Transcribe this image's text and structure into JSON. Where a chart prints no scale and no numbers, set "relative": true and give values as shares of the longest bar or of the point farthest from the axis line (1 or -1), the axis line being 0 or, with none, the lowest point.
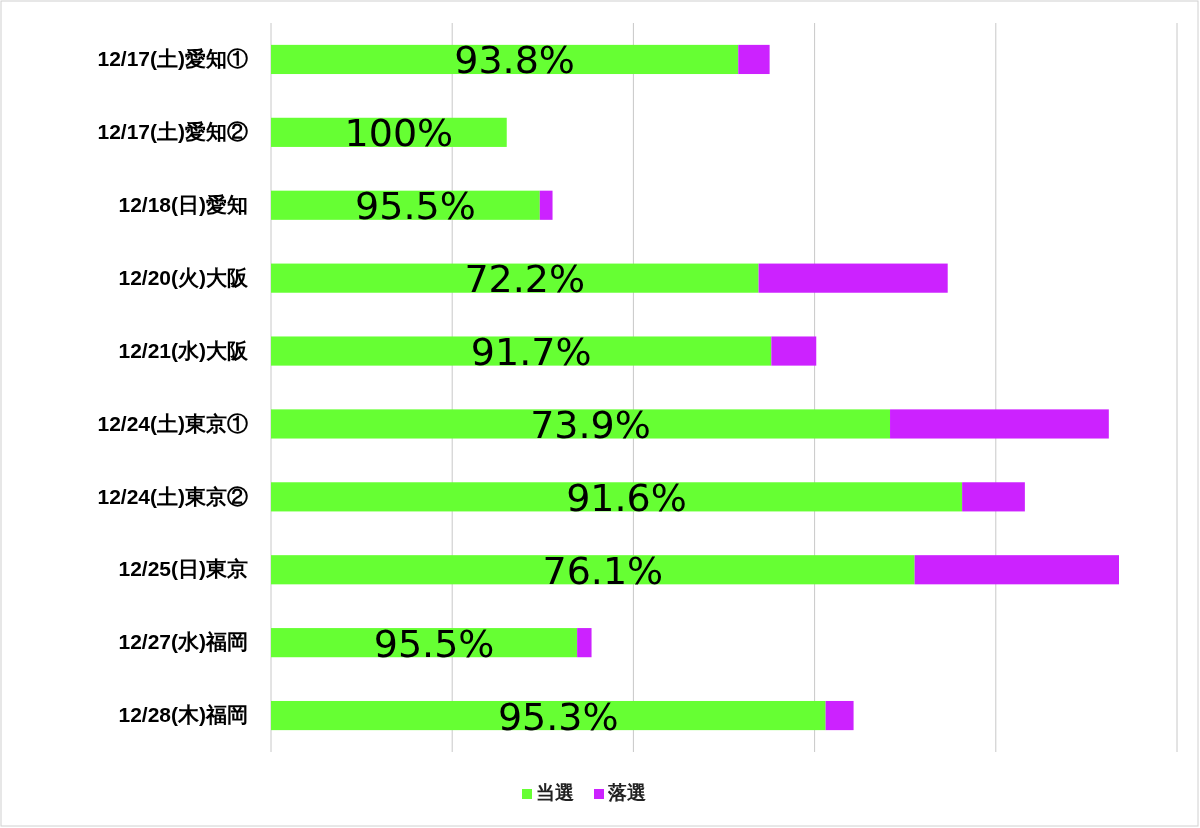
{
  "chart_data": {
    "type": "bar",
    "orientation": "horizontal",
    "stacked": true,
    "relative": true,
    "grid": "x",
    "legend": "bottom",
    "categories": [
      "12/17(土)愛知①",
      "12/17(土)愛知②",
      "12/18(日)愛知",
      "12/20(火)大阪",
      "12/21(水)大阪",
      "12/24(土)東京①",
      "12/24(土)東京②",
      "12/25(日)東京",
      "12/27(水)福岡",
      "12/28(木)福岡"
    ],
    "series": [
      {
        "name": "当選",
        "color": "#66ff33",
        "values": [
          0.551,
          0.278,
          0.317,
          0.575,
          0.59,
          0.73,
          0.815,
          0.759,
          0.361,
          0.654
        ]
      },
      {
        "name": "落選",
        "color": "#cc22ff",
        "values": [
          0.037,
          0,
          0.015,
          0.223,
          0.053,
          0.258,
          0.074,
          0.241,
          0.017,
          0.033
        ]
      }
    ],
    "annotations": [
      "93.8%",
      "100%",
      "95.5%",
      "72.2%",
      "91.7%",
      "73.9%",
      "91.6%",
      "76.1%",
      "95.5%",
      "95.3%"
    ]
  }
}
